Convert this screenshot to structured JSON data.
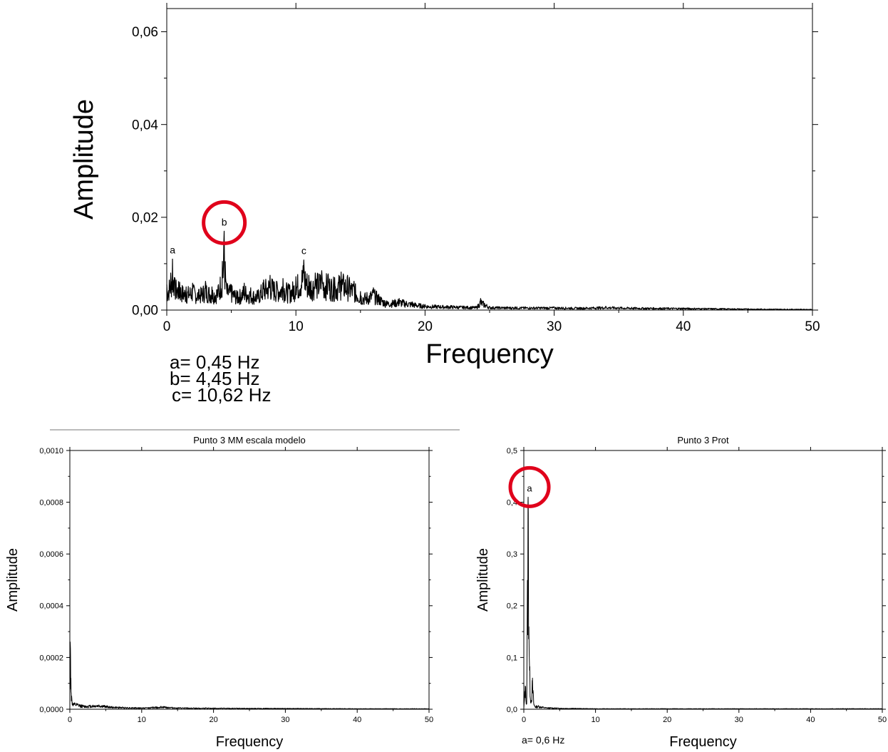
{
  "notes_top": [
    "a= 0,45 Hz",
    "b= 4,45 Hz",
    "c= 10,62 Hz"
  ],
  "note_bottom": "a= 0,6 Hz",
  "colors": {
    "line": "#000000",
    "highlight_circle": "#e0001b",
    "separator": "#777777"
  },
  "chart_data": [
    {
      "type": "line",
      "title": "",
      "xlabel": "Frequency",
      "ylabel": "Amplitude",
      "xlim": [
        0,
        50
      ],
      "ylim": [
        0,
        0.065
      ],
      "xticks": [
        0,
        10,
        20,
        30,
        40,
        50
      ],
      "xtick_labels": [
        "0",
        "10",
        "20",
        "30",
        "40",
        "50"
      ],
      "yticks": [
        0,
        0.02,
        0.04,
        0.06
      ],
      "ytick_labels": [
        "0,00",
        "0,02",
        "0,04",
        "0,06"
      ],
      "grid": false,
      "series": [
        {
          "x": [
            0,
            0.3,
            0.45,
            0.6,
            1,
            1.5,
            2,
            2.5,
            3,
            3.5,
            4,
            4.3,
            4.45,
            4.6,
            5,
            5.5,
            6,
            6.5,
            7,
            7.5,
            8,
            8.5,
            9,
            9.5,
            10,
            10.62,
            11,
            11.5,
            12,
            12.5,
            13,
            13.5,
            14,
            14.5,
            15,
            15.5,
            16,
            17,
            18,
            19,
            20,
            22,
            24,
            24.3,
            25,
            27,
            30,
            32,
            34,
            36,
            40,
            45,
            50
          ],
          "values": [
            0.0055,
            0.008,
            0.011,
            0.007,
            0.006,
            0.005,
            0.0058,
            0.0045,
            0.0062,
            0.005,
            0.0055,
            0.0105,
            0.017,
            0.006,
            0.0055,
            0.004,
            0.0058,
            0.0048,
            0.0042,
            0.0065,
            0.0075,
            0.0062,
            0.0068,
            0.0055,
            0.0072,
            0.0108,
            0.0075,
            0.008,
            0.0085,
            0.0078,
            0.007,
            0.0082,
            0.0075,
            0.0062,
            0.004,
            0.0038,
            0.0048,
            0.002,
            0.0025,
            0.0018,
            0.0012,
            0.001,
            0.0008,
            0.0025,
            0.0008,
            0.0007,
            0.0007,
            0.0006,
            0.0008,
            0.0006,
            0.0005,
            0.0003,
            0.0002
          ]
        }
      ],
      "annotations": [
        {
          "text": "a",
          "x": 0.45,
          "y": 0.011
        },
        {
          "text": "b",
          "x": 4.45,
          "y": 0.017,
          "highlighted": true
        },
        {
          "text": "c",
          "x": 10.62,
          "y": 0.0108
        }
      ]
    },
    {
      "type": "line",
      "title": "Punto 3 MM escala modelo",
      "xlabel": "Frequency",
      "ylabel": "Amplitude",
      "xlim": [
        0,
        50
      ],
      "ylim": [
        0,
        0.001
      ],
      "xticks": [
        0,
        10,
        20,
        30,
        40,
        50
      ],
      "xtick_labels": [
        "0",
        "10",
        "20",
        "30",
        "40",
        "50"
      ],
      "yticks": [
        0,
        0.0002,
        0.0004,
        0.0006,
        0.0008,
        0.001
      ],
      "ytick_labels": [
        "0,0000",
        "0,0002",
        "0,0004",
        "0,0006",
        "0,0008",
        "0,0010"
      ],
      "grid": false,
      "series": [
        {
          "x": [
            0,
            0.05,
            0.1,
            0.15,
            0.2,
            0.3,
            0.5,
            1,
            2,
            4,
            6,
            10,
            13,
            15,
            20,
            30,
            40,
            50
          ],
          "values": [
            5e-05,
            0.00026,
            0.0002,
            0.00012,
            6e-05,
            3e-05,
            2e-05,
            1.8e-05,
            1.2e-05,
            1.5e-05,
            8e-06,
            5e-06,
            9e-06,
            5e-06,
            4e-06,
            3e-06,
            2e-06,
            2e-06
          ]
        }
      ],
      "annotations": []
    },
    {
      "type": "line",
      "title": "Punto 3 Prot",
      "xlabel": "Frequency",
      "ylabel": "Amplitude",
      "xlim": [
        0,
        50
      ],
      "ylim": [
        0,
        0.5
      ],
      "xticks": [
        0,
        10,
        20,
        30,
        40,
        50
      ],
      "xtick_labels": [
        "0",
        "10",
        "20",
        "30",
        "40",
        "50"
      ],
      "yticks": [
        0,
        0.1,
        0.2,
        0.3,
        0.4,
        0.5
      ],
      "ytick_labels": [
        "0,0",
        "0,1",
        "0,2",
        "0,3",
        "0,4",
        "0,5"
      ],
      "grid": false,
      "series": [
        {
          "x": [
            0,
            0.2,
            0.4,
            0.6,
            0.8,
            1.0,
            1.2,
            1.4,
            1.6,
            2,
            3,
            5,
            10,
            20,
            30,
            40,
            50
          ],
          "values": [
            0.002,
            0.045,
            0.01,
            0.41,
            0.075,
            0.012,
            0.052,
            0.01,
            0.005,
            0.006,
            0.003,
            0.002,
            0.001,
            0.001,
            0.001,
            0.001,
            0.001
          ]
        }
      ],
      "annotations": [
        {
          "text": "a",
          "x": 0.6,
          "y": 0.41,
          "highlighted": true
        }
      ]
    }
  ]
}
